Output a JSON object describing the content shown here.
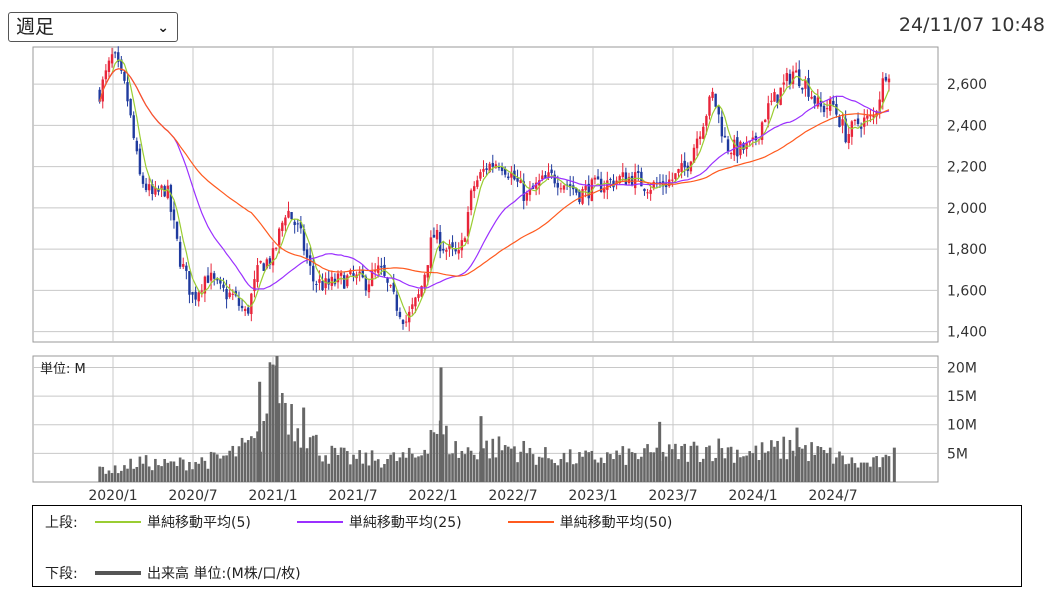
{
  "controls": {
    "period_select": "週足"
  },
  "timestamp": "24/11/07 10:48",
  "legend": {
    "upper_label": "上段:",
    "lower_label": "下段:",
    "volume_label": "出来高 単位:(M株/口/枚)",
    "ma_labels": [
      "単純移動平均(5)",
      "単純移動平均(25)",
      "単純移動平均(50)"
    ]
  },
  "chart_data": [
    {
      "type": "candlestick",
      "y_axis_side": "right",
      "ylim": [
        1350,
        2780
      ],
      "yticks": [
        1400,
        1600,
        1800,
        2000,
        2200,
        2400,
        2600
      ],
      "ytick_labels": [
        "1,400",
        "1,600",
        "1,800",
        "2,000",
        "2,200",
        "2,400",
        "2,600"
      ],
      "x_ticks": [
        "2020/1",
        "2020/7",
        "2021/1",
        "2021/7",
        "2022/1",
        "2022/7",
        "2023/1",
        "2023/7",
        "2024/1",
        "2024/7"
      ],
      "grid": true,
      "up_color": "#e8253a",
      "down_color": "#1f3a9e",
      "price_path": [
        [
          "2019/12",
          2560
        ],
        [
          "2020/1",
          2740
        ],
        [
          "2020/2",
          2560
        ],
        [
          "2020/3",
          2150
        ],
        [
          "2020/4",
          2050
        ],
        [
          "2020/5",
          2100
        ],
        [
          "2020/6",
          1760
        ],
        [
          "2020/7",
          1560
        ],
        [
          "2020/8",
          1680
        ],
        [
          "2020/9",
          1600
        ],
        [
          "2020/10",
          1570
        ],
        [
          "2020/11",
          1480
        ],
        [
          "2020/12",
          1720
        ],
        [
          "2021/1",
          1760
        ],
        [
          "2021/2",
          2000
        ],
        [
          "2021/3",
          1880
        ],
        [
          "2021/4",
          1650
        ],
        [
          "2021/5",
          1620
        ],
        [
          "2021/6",
          1650
        ],
        [
          "2021/7",
          1660
        ],
        [
          "2021/8",
          1640
        ],
        [
          "2021/9",
          1700
        ],
        [
          "2021/10",
          1560
        ],
        [
          "2021/11",
          1450
        ],
        [
          "2021/12",
          1580
        ],
        [
          "2022/1",
          1870
        ],
        [
          "2022/2",
          1800
        ],
        [
          "2022/3",
          1760
        ],
        [
          "2022/4",
          2100
        ],
        [
          "2022/5",
          2200
        ],
        [
          "2022/6",
          2230
        ],
        [
          "2022/7",
          2150
        ],
        [
          "2022/8",
          2050
        ],
        [
          "2022/9",
          2120
        ],
        [
          "2022/10",
          2150
        ],
        [
          "2022/11",
          2120
        ],
        [
          "2022/12",
          2070
        ],
        [
          "2023/1",
          2100
        ],
        [
          "2023/2",
          2120
        ],
        [
          "2023/3",
          2140
        ],
        [
          "2023/4",
          2150
        ],
        [
          "2023/5",
          2110
        ],
        [
          "2023/6",
          2110
        ],
        [
          "2023/7",
          2140
        ],
        [
          "2023/8",
          2200
        ],
        [
          "2023/9",
          2380
        ],
        [
          "2023/10",
          2550
        ],
        [
          "2023/11",
          2300
        ],
        [
          "2023/12",
          2280
        ],
        [
          "2024/1",
          2300
        ],
        [
          "2024/2",
          2470
        ],
        [
          "2024/3",
          2560
        ],
        [
          "2024/4",
          2660
        ],
        [
          "2024/5",
          2600
        ],
        [
          "2024/6",
          2480
        ],
        [
          "2024/7",
          2500
        ],
        [
          "2024/8",
          2350
        ],
        [
          "2024/9",
          2420
        ],
        [
          "2024/10",
          2430
        ],
        [
          "2024/11",
          2670
        ]
      ],
      "notable": {
        "high": 2740,
        "low": 1360,
        "last": 2670
      },
      "series": [
        {
          "name": "単純移動平均(5)",
          "color": "#9acd32"
        },
        {
          "name": "単純移動平均(25)",
          "color": "#9b30ff"
        },
        {
          "name": "単純移動平均(50)",
          "color": "#ff5a1f"
        }
      ]
    },
    {
      "type": "bar",
      "unit_label": "単位: M",
      "ylim": [
        0,
        22
      ],
      "yticks": [
        5,
        10,
        15,
        20
      ],
      "ytick_labels": [
        "5M",
        "10M",
        "15M",
        "20M"
      ],
      "color": "#666666",
      "volume_path": [
        [
          "2019/12",
          2.5
        ],
        [
          "2020/1",
          2.0
        ],
        [
          "2020/3",
          3.5
        ],
        [
          "2020/5",
          3.0
        ],
        [
          "2020/7",
          3.5
        ],
        [
          "2020/9",
          4.0
        ],
        [
          "2020/12",
          7.0
        ],
        [
          "2021/1",
          18.0
        ],
        [
          "2021/2",
          14.0
        ],
        [
          "2021/3",
          9.0
        ],
        [
          "2021/5",
          5.0
        ],
        [
          "2021/7",
          4.0
        ],
        [
          "2021/10",
          4.0
        ],
        [
          "2021/12",
          4.5
        ],
        [
          "2022/1",
          10.0
        ],
        [
          "2022/3",
          5.0
        ],
        [
          "2022/5",
          6.0
        ],
        [
          "2022/7",
          6.0
        ],
        [
          "2022/9",
          4.5
        ],
        [
          "2022/12",
          4.0
        ],
        [
          "2023/3",
          4.5
        ],
        [
          "2023/7",
          5.0
        ],
        [
          "2023/10",
          6.0
        ],
        [
          "2024/1",
          5.0
        ],
        [
          "2024/4",
          6.0
        ],
        [
          "2024/7",
          4.5
        ],
        [
          "2024/9",
          3.0
        ],
        [
          "2024/11",
          3.5
        ]
      ],
      "spikes": [
        [
          "2021/1",
          20.5
        ],
        [
          "2021/1",
          22.0
        ],
        [
          "2022/1",
          20.0
        ],
        [
          "2020/12",
          17.5
        ],
        [
          "2021/3",
          13.0
        ],
        [
          "2022/4",
          11.5
        ],
        [
          "2023/6",
          10.5
        ],
        [
          "2024/4",
          9.5
        ],
        [
          "2024/11",
          6.0
        ]
      ]
    }
  ]
}
